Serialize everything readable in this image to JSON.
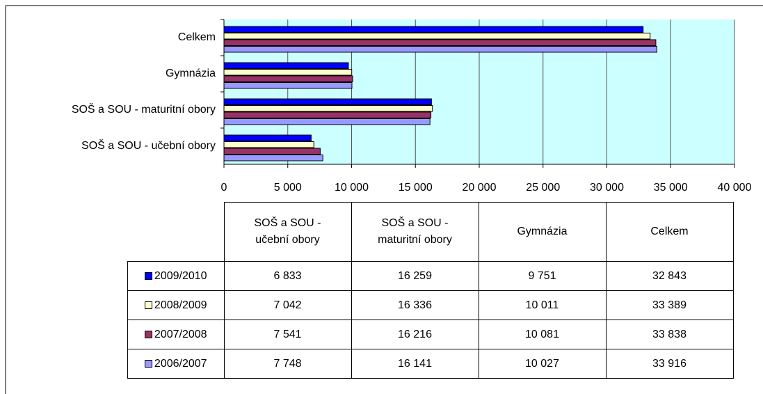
{
  "chart_data": {
    "type": "bar",
    "orientation": "horizontal",
    "categories": [
      "SOŠ a SOU - učební obory",
      "SOŠ a SOU - maturitní obory",
      "Gymnázia",
      "Celkem"
    ],
    "series": [
      {
        "name": "2009/2010",
        "color": "#0000ff",
        "values": [
          6833,
          16259,
          9751,
          32843
        ],
        "value_labels": [
          "6 833",
          "16 259",
          "9 751",
          "32 843"
        ]
      },
      {
        "name": "2008/2009",
        "color": "#ffffcc",
        "values": [
          7042,
          16336,
          10011,
          33389
        ],
        "value_labels": [
          "7 042",
          "16 336",
          "10 011",
          "33 389"
        ]
      },
      {
        "name": "2007/2008",
        "color": "#993366",
        "values": [
          7541,
          16216,
          10081,
          33838
        ],
        "value_labels": [
          "7 541",
          "16 216",
          "10 081",
          "33 838"
        ]
      },
      {
        "name": "2006/2007",
        "color": "#9999ff",
        "values": [
          7748,
          16141,
          10027,
          33916
        ],
        "value_labels": [
          "7 748",
          "16 141",
          "10 027",
          "33 916"
        ]
      }
    ],
    "xlim": [
      0,
      40000
    ],
    "xticks": [
      0,
      {
        "value": 5000,
        "label": "5 000"
      },
      {
        "value": 10000,
        "label": "10 000"
      },
      {
        "value": 15000,
        "label": "15 000"
      },
      {
        "value": 20000,
        "label": "20 000"
      },
      {
        "value": 25000,
        "label": "25 000"
      },
      {
        "value": 30000,
        "label": "30 000"
      },
      {
        "value": 35000,
        "label": "35 000"
      },
      {
        "value": 40000,
        "label": "40 000"
      }
    ],
    "grid": true,
    "plot_background": "#ccffff",
    "data_table": true
  }
}
